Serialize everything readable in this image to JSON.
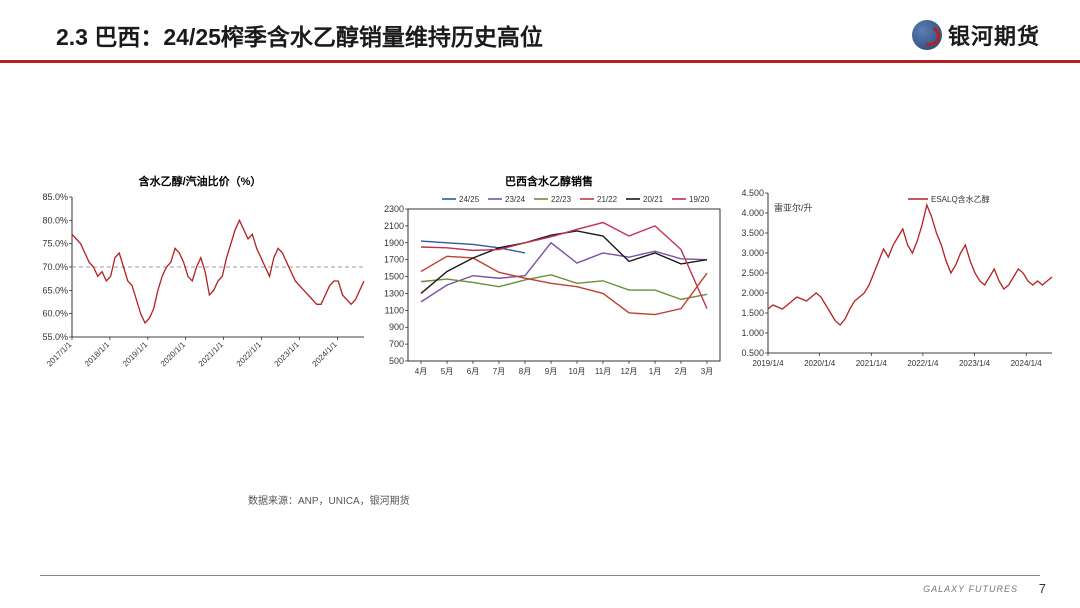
{
  "header": {
    "title": "2.3 巴西：24/25榨季含水乙醇销量维持历史高位",
    "logo_text": "银河期货"
  },
  "chart1": {
    "type": "line",
    "title": "含水乙醇/汽油比价（%）",
    "legend_color": "#b52020",
    "ylim": [
      55,
      85
    ],
    "ytick_step": 5,
    "yticks": [
      "55.0%",
      "60.0%",
      "65.0%",
      "70.0%",
      "75.0%",
      "80.0%",
      "85.0%"
    ],
    "xticks": [
      "2017/1/1",
      "2018/1/1",
      "2019/1/1",
      "2020/1/1",
      "2021/1/1",
      "2022/1/1",
      "2023/1/1",
      "2024/1/1"
    ],
    "ref_line_y": 70,
    "ref_line_color": "#7f7f7f",
    "line_color": "#b52020",
    "background_color": "#ffffff",
    "data_y": [
      77,
      76,
      75,
      73,
      71,
      70,
      68,
      69,
      67,
      68,
      72,
      73,
      70,
      67,
      66,
      63,
      60,
      58,
      59,
      61,
      65,
      68,
      70,
      71,
      74,
      73,
      71,
      68,
      67,
      70,
      72,
      69,
      64,
      65,
      67,
      68,
      72,
      75,
      78,
      80,
      78,
      76,
      77,
      74,
      72,
      70,
      68,
      72,
      74,
      73,
      71,
      69,
      67,
      66,
      65,
      64,
      63,
      62,
      62,
      64,
      66,
      67,
      67,
      64,
      63,
      62,
      63,
      65,
      67
    ]
  },
  "chart2": {
    "type": "line",
    "title": "巴西含水乙醇销售",
    "ylim": [
      500,
      2300
    ],
    "ytick_step": 200,
    "yticks": [
      "500",
      "700",
      "900",
      "1100",
      "1300",
      "1500",
      "1700",
      "1900",
      "2100",
      "2300"
    ],
    "xticks": [
      "4月",
      "5月",
      "6月",
      "7月",
      "8月",
      "9月",
      "10月",
      "11月",
      "12月",
      "1月",
      "2月",
      "3月"
    ],
    "background_color": "#ffffff",
    "series": [
      {
        "name": "24/25",
        "color": "#2e5aa0",
        "values": [
          1920,
          1900,
          1880,
          1840,
          1780,
          null,
          null,
          null,
          null,
          null,
          null,
          null
        ]
      },
      {
        "name": "23/24",
        "color": "#7c4fa8",
        "values": [
          1200,
          1400,
          1510,
          1480,
          1510,
          1900,
          1660,
          1780,
          1730,
          1800,
          1710,
          1700
        ]
      },
      {
        "name": "22/23",
        "color": "#6b8e3a",
        "values": [
          1440,
          1470,
          1430,
          1380,
          1460,
          1520,
          1420,
          1450,
          1340,
          1340,
          1230,
          1290
        ]
      },
      {
        "name": "21/22",
        "color": "#c04030",
        "values": [
          1560,
          1740,
          1720,
          1550,
          1480,
          1420,
          1380,
          1300,
          1070,
          1050,
          1120,
          1540
        ]
      },
      {
        "name": "20/21",
        "color": "#1a1a1a",
        "values": [
          1300,
          1560,
          1720,
          1840,
          1900,
          1990,
          2040,
          1980,
          1680,
          1780,
          1650,
          1700
        ]
      },
      {
        "name": "19/20",
        "color": "#c23050",
        "values": [
          1850,
          1840,
          1810,
          1820,
          1900,
          1970,
          2060,
          2140,
          1980,
          2100,
          1820,
          1120
        ]
      }
    ]
  },
  "chart3": {
    "type": "line",
    "title": "",
    "y_axis_label": "雷亚尔/升",
    "legend": "ESALQ含水乙醇",
    "legend_color": "#b52020",
    "ylim": [
      0.5,
      4.5
    ],
    "ytick_step": 0.5,
    "yticks": [
      "0.500",
      "1.000",
      "1.500",
      "2.000",
      "2.500",
      "3.000",
      "3.500",
      "4.000",
      "4.500"
    ],
    "xticks": [
      "2019/1/4",
      "2020/1/4",
      "2021/1/4",
      "2022/1/4",
      "2023/1/4",
      "2024/1/4"
    ],
    "line_color": "#b52020",
    "background_color": "#ffffff",
    "data_y": [
      1.6,
      1.7,
      1.65,
      1.6,
      1.7,
      1.8,
      1.9,
      1.85,
      1.8,
      1.9,
      2.0,
      1.9,
      1.7,
      1.5,
      1.3,
      1.2,
      1.35,
      1.6,
      1.8,
      1.9,
      2.0,
      2.2,
      2.5,
      2.8,
      3.1,
      2.9,
      3.2,
      3.4,
      3.6,
      3.2,
      3.0,
      3.3,
      3.7,
      4.2,
      3.9,
      3.5,
      3.2,
      2.8,
      2.5,
      2.7,
      3.0,
      3.2,
      2.8,
      2.5,
      2.3,
      2.2,
      2.4,
      2.6,
      2.3,
      2.1,
      2.2,
      2.4,
      2.6,
      2.5,
      2.3,
      2.2,
      2.3,
      2.2,
      2.3,
      2.4
    ]
  },
  "footer": {
    "source": "数据来源：ANP，UNICA，银河期货",
    "brand": "GALAXY FUTURES",
    "page": "7"
  }
}
